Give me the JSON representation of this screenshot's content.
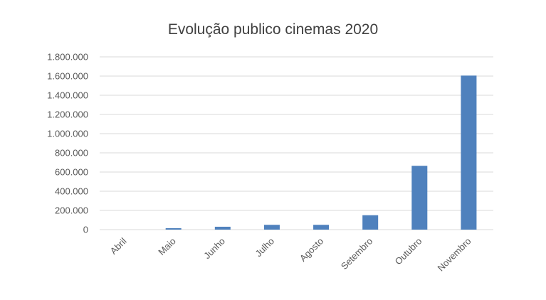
{
  "chart_data": {
    "type": "bar",
    "title": "Evolução publico cinemas 2020",
    "categories": [
      "Abril",
      "Maio",
      "Junho",
      "Julho",
      "Agosto",
      "Setembro",
      "Outubro",
      "Novembro"
    ],
    "values": [
      0,
      15000,
      30000,
      50000,
      50000,
      150000,
      665000,
      1605000
    ],
    "ylim": [
      0,
      1800000
    ],
    "yticks": [
      0,
      200000,
      400000,
      600000,
      800000,
      1000000,
      1200000,
      1400000,
      1600000,
      1800000
    ],
    "ytick_labels": [
      "0",
      "200.000",
      "400.000",
      "600.000",
      "800.000",
      "1.000.000",
      "1.200.000",
      "1.400.000",
      "1.600.000",
      "1.800.000"
    ],
    "grid": true,
    "bar_color": "#4f81bd",
    "grid_color": "#d9d9d9"
  }
}
